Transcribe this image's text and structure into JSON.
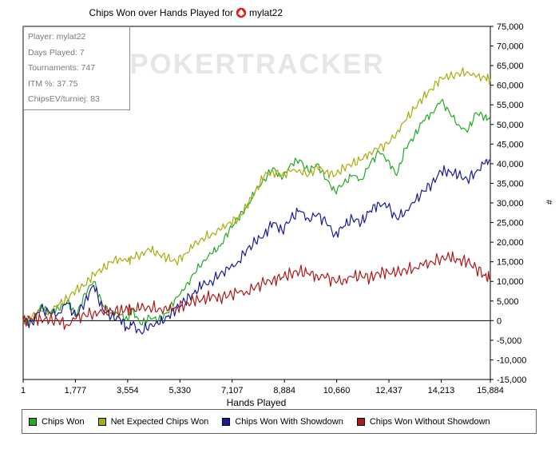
{
  "title_prefix": "Chips Won over Hands Played for",
  "player_name": "mylat22",
  "watermark": "POKERTRACKER",
  "stats": [
    "Player: mylat22",
    "Days Played: 7",
    "Tournaments: 747",
    "ITM %: 37.75",
    "ChipsEV/turniej: 83"
  ],
  "icons": {
    "title_icon": "spade-icon"
  },
  "chart_data": {
    "type": "line",
    "title": "Chips Won over Hands Played for mylat22",
    "xlabel": "Hands Played",
    "ylabel": "#",
    "xlim": [
      1,
      15884
    ],
    "ylim": [
      -15000,
      75000
    ],
    "x_ticks": [
      1,
      1777,
      3554,
      5330,
      7107,
      8884,
      10660,
      12437,
      14213,
      15884
    ],
    "x_tick_labels": [
      "1",
      "1,777",
      "3,554",
      "5,330",
      "7,107",
      "8,884",
      "10,660",
      "12,437",
      "14,213",
      "15,884"
    ],
    "y_ticks": [
      -15000,
      -10000,
      -5000,
      0,
      5000,
      10000,
      15000,
      20000,
      25000,
      30000,
      35000,
      40000,
      45000,
      50000,
      55000,
      60000,
      65000,
      70000,
      75000
    ],
    "y_tick_labels": [
      "-15,000",
      "-10,000",
      "-5,000",
      "0",
      "5,000",
      "10,000",
      "15,000",
      "20,000",
      "25,000",
      "30,000",
      "35,000",
      "40,000",
      "45,000",
      "50,000",
      "55,000",
      "60,000",
      "65,000",
      "70,000",
      "75,000"
    ],
    "grid": false,
    "legend_position": "bottom",
    "series": [
      {
        "name": "Chips Won",
        "color": "#22aa22",
        "x": [
          1,
          300,
          600,
          900,
          1200,
          1500,
          1800,
          2100,
          2400,
          2700,
          3000,
          3300,
          3554,
          3700,
          4000,
          4300,
          4600,
          4900,
          5200,
          5500,
          5800,
          6100,
          6400,
          6700,
          7000,
          7300,
          7600,
          7900,
          8200,
          8500,
          8800,
          9100,
          9400,
          9700,
          10000,
          10300,
          10600,
          10900,
          11200,
          11500,
          11800,
          12100,
          12400,
          12700,
          13000,
          13300,
          13600,
          13900,
          14213,
          14500,
          14800,
          15100,
          15400,
          15700,
          15884
        ],
        "y": [
          0,
          -500,
          4000,
          2000,
          3000,
          5000,
          1000,
          7000,
          10000,
          4000,
          2000,
          1500,
          0,
          3000,
          -1000,
          1000,
          0,
          2000,
          6000,
          8000,
          12000,
          15000,
          17000,
          19000,
          23000,
          26000,
          29000,
          33000,
          36000,
          39000,
          36000,
          40000,
          41000,
          38000,
          40000,
          36000,
          33000,
          35000,
          37000,
          36000,
          40000,
          43000,
          41000,
          37000,
          44000,
          47000,
          51000,
          53000,
          56000,
          53000,
          50000,
          48000,
          53000,
          52000,
          51000
        ]
      },
      {
        "name": "Net Expected Chips Won",
        "color": "#aaaa10",
        "x": [
          1,
          300,
          600,
          900,
          1200,
          1500,
          1800,
          2100,
          2400,
          2700,
          3000,
          3300,
          3554,
          3700,
          4000,
          4300,
          4600,
          4900,
          5200,
          5500,
          5800,
          6100,
          6400,
          6700,
          7000,
          7300,
          7600,
          7900,
          8200,
          8500,
          8800,
          9100,
          9400,
          9700,
          10000,
          10300,
          10600,
          10900,
          11200,
          11500,
          11800,
          12100,
          12400,
          12700,
          13000,
          13300,
          13600,
          13900,
          14213,
          14500,
          14800,
          15100,
          15400,
          15700,
          15884
        ],
        "y": [
          0,
          1000,
          2500,
          2000,
          4000,
          5500,
          8000,
          9000,
          12000,
          13000,
          15000,
          16000,
          15000,
          16000,
          17000,
          18000,
          17000,
          16000,
          15000,
          17000,
          19000,
          21000,
          22000,
          23000,
          25000,
          26000,
          29000,
          33000,
          37000,
          38000,
          37000,
          38000,
          38500,
          37000,
          39000,
          38000,
          37000,
          39000,
          40000,
          41000,
          43000,
          44000,
          45000,
          48000,
          51000,
          54000,
          57000,
          59000,
          62000,
          62000,
          63000,
          63500,
          62000,
          62000,
          61500
        ]
      },
      {
        "name": "Chips Won With Showdown",
        "color": "#1a1a99",
        "x": [
          1,
          300,
          600,
          900,
          1200,
          1500,
          1800,
          2100,
          2400,
          2700,
          3000,
          3300,
          3554,
          3700,
          4000,
          4300,
          4600,
          4900,
          5200,
          5500,
          5800,
          6100,
          6400,
          6700,
          7000,
          7300,
          7600,
          7900,
          8200,
          8500,
          8800,
          9100,
          9400,
          9700,
          10000,
          10300,
          10600,
          10900,
          11200,
          11500,
          11800,
          12100,
          12400,
          12700,
          13000,
          13300,
          13600,
          13900,
          14213,
          14500,
          14800,
          15100,
          15400,
          15700,
          15884
        ],
        "y": [
          0,
          -500,
          3000,
          2000,
          2000,
          4500,
          1000,
          5000,
          9000,
          3000,
          1000,
          500,
          -2000,
          -1000,
          -3000,
          -1000,
          -1000,
          1000,
          3000,
          5000,
          7000,
          9000,
          10000,
          12000,
          13000,
          15000,
          18000,
          20000,
          22000,
          25000,
          23000,
          26000,
          28000,
          26000,
          27000,
          25000,
          22000,
          24000,
          26000,
          25000,
          28000,
          30000,
          29000,
          26000,
          28000,
          30000,
          33000,
          35000,
          38000,
          38000,
          37000,
          36000,
          38000,
          40000,
          41000
        ]
      },
      {
        "name": "Chips Won Without Showdown",
        "color": "#aa1a1a",
        "x": [
          1,
          300,
          600,
          900,
          1200,
          1500,
          1800,
          2100,
          2400,
          2700,
          3000,
          3300,
          3554,
          3700,
          4000,
          4300,
          4600,
          4900,
          5200,
          5500,
          5800,
          6100,
          6400,
          6700,
          7000,
          7300,
          7600,
          7900,
          8200,
          8500,
          8800,
          9100,
          9400,
          9700,
          10000,
          10300,
          10600,
          10900,
          11200,
          11500,
          11800,
          12100,
          12400,
          12700,
          13000,
          13300,
          13600,
          13900,
          14213,
          14500,
          14800,
          15100,
          15400,
          15700,
          15884
        ],
        "y": [
          0,
          500,
          500,
          0,
          0,
          -1000,
          500,
          1500,
          2000,
          2000,
          2500,
          2500,
          3000,
          3000,
          3000,
          3500,
          3000,
          2500,
          3500,
          4000,
          5000,
          5500,
          6000,
          6000,
          6500,
          7000,
          7500,
          8500,
          9500,
          10500,
          11000,
          12000,
          12500,
          12000,
          11500,
          11000,
          10000,
          10500,
          11000,
          11500,
          11000,
          12000,
          12500,
          12000,
          13000,
          13500,
          14000,
          15000,
          16000,
          16000,
          15500,
          15000,
          13500,
          11500,
          10500
        ]
      }
    ]
  }
}
